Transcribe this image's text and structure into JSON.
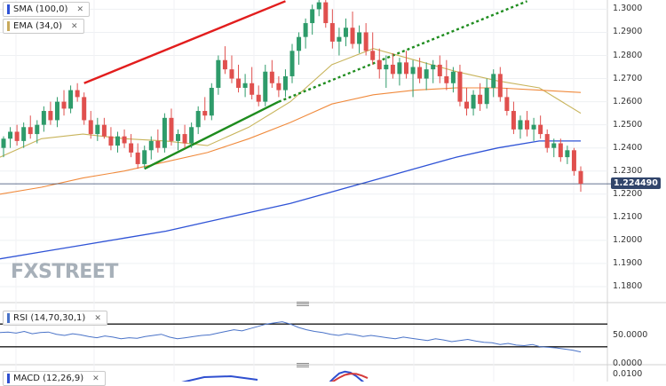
{
  "legends": {
    "sma": {
      "label": "SMA (100,0)",
      "color": "#2f53d6"
    },
    "ema": {
      "label": "EMA (34,0)",
      "color": "#c8a95b"
    },
    "rsi": {
      "label": "RSI (14,70,30,1)",
      "color": "#4a73c8"
    },
    "macd": {
      "label": "MACD (12,26,9)",
      "color": "#2f4fd0"
    }
  },
  "watermark": {
    "left": "FX",
    "x": "",
    "right": "STREET",
    "full": "FXSTREET"
  },
  "current_price": "1.224490",
  "colors": {
    "up": "#2e9b6a",
    "down": "#e0504e",
    "sma": "#2f53d6",
    "ema34": "#c8b45b",
    "ema_long": "#f08a3c",
    "trend_red": "#e21d1d",
    "trend_green": "#1e8c1e",
    "rsi_line": "#4a73c8",
    "macd_line": "#2f4fd0",
    "signal_line": "#d63a3a"
  },
  "chart_data": [
    {
      "type": "candlestick",
      "title": "",
      "y_axis": {
        "ticks": [
          "1.3000",
          "1.2900",
          "1.2800",
          "1.2700",
          "1.2600",
          "1.2500",
          "1.2400",
          "1.2300",
          "1.2200",
          "1.2100",
          "1.2000",
          "1.1900",
          "1.1800"
        ],
        "ylim": [
          1.175,
          1.304
        ]
      },
      "current_price_line": 1.22449,
      "candles": [
        [
          1.24,
          1.245,
          1.236,
          1.244
        ],
        [
          1.244,
          1.249,
          1.24,
          1.247
        ],
        [
          1.247,
          1.25,
          1.241,
          1.243
        ],
        [
          1.243,
          1.251,
          1.24,
          1.249
        ],
        [
          1.249,
          1.254,
          1.244,
          1.246
        ],
        [
          1.246,
          1.252,
          1.242,
          1.25
        ],
        [
          1.25,
          1.258,
          1.247,
          1.256
        ],
        [
          1.256,
          1.26,
          1.25,
          1.252
        ],
        [
          1.252,
          1.262,
          1.249,
          1.26
        ],
        [
          1.26,
          1.265,
          1.254,
          1.257
        ],
        [
          1.257,
          1.267,
          1.255,
          1.265
        ],
        [
          1.265,
          1.268,
          1.26,
          1.262
        ],
        [
          1.262,
          1.264,
          1.25,
          1.252
        ],
        [
          1.252,
          1.256,
          1.244,
          1.246
        ],
        [
          1.246,
          1.253,
          1.243,
          1.25
        ],
        [
          1.25,
          1.253,
          1.244,
          1.245
        ],
        [
          1.245,
          1.249,
          1.239,
          1.241
        ],
        [
          1.241,
          1.247,
          1.238,
          1.245
        ],
        [
          1.245,
          1.248,
          1.24,
          1.242
        ],
        [
          1.242,
          1.246,
          1.236,
          1.238
        ],
        [
          1.238,
          1.242,
          1.231,
          1.233
        ],
        [
          1.233,
          1.241,
          1.231,
          1.239
        ],
        [
          1.239,
          1.245,
          1.235,
          1.243
        ],
        [
          1.243,
          1.248,
          1.238,
          1.24
        ],
        [
          1.24,
          1.255,
          1.238,
          1.253
        ],
        [
          1.253,
          1.257,
          1.241,
          1.243
        ],
        [
          1.243,
          1.248,
          1.239,
          1.246
        ],
        [
          1.246,
          1.25,
          1.24,
          1.242
        ],
        [
          1.242,
          1.251,
          1.24,
          1.249
        ],
        [
          1.249,
          1.258,
          1.246,
          1.256
        ],
        [
          1.256,
          1.262,
          1.252,
          1.254
        ],
        [
          1.254,
          1.268,
          1.252,
          1.266
        ],
        [
          1.266,
          1.28,
          1.263,
          1.278
        ],
        [
          1.278,
          1.284,
          1.272,
          1.274
        ],
        [
          1.274,
          1.28,
          1.268,
          1.27
        ],
        [
          1.27,
          1.276,
          1.264,
          1.266
        ],
        [
          1.266,
          1.272,
          1.262,
          1.268
        ],
        [
          1.268,
          1.275,
          1.261,
          1.263
        ],
        [
          1.263,
          1.267,
          1.258,
          1.26
        ],
        [
          1.26,
          1.276,
          1.258,
          1.273
        ],
        [
          1.273,
          1.278,
          1.266,
          1.268
        ],
        [
          1.268,
          1.271,
          1.262,
          1.265
        ],
        [
          1.265,
          1.274,
          1.262,
          1.271
        ],
        [
          1.271,
          1.285,
          1.268,
          1.282
        ],
        [
          1.282,
          1.29,
          1.276,
          1.288
        ],
        [
          1.288,
          1.296,
          1.283,
          1.294
        ],
        [
          1.294,
          1.302,
          1.289,
          1.3
        ],
        [
          1.3,
          1.304,
          1.297,
          1.303
        ],
        [
          1.303,
          1.304,
          1.292,
          1.294
        ],
        [
          1.294,
          1.3,
          1.283,
          1.286
        ],
        [
          1.286,
          1.292,
          1.28,
          1.288
        ],
        [
          1.288,
          1.296,
          1.284,
          1.292
        ],
        [
          1.292,
          1.299,
          1.283,
          1.285
        ],
        [
          1.285,
          1.293,
          1.281,
          1.29
        ],
        [
          1.29,
          1.294,
          1.28,
          1.282
        ],
        [
          1.282,
          1.29,
          1.276,
          1.278
        ],
        [
          1.278,
          1.283,
          1.27,
          1.274
        ],
        [
          1.274,
          1.28,
          1.266,
          1.276
        ],
        [
          1.276,
          1.281,
          1.27,
          1.272
        ],
        [
          1.272,
          1.279,
          1.267,
          1.277
        ],
        [
          1.277,
          1.282,
          1.27,
          1.272
        ],
        [
          1.272,
          1.278,
          1.262,
          1.275
        ],
        [
          1.275,
          1.279,
          1.268,
          1.27
        ],
        [
          1.27,
          1.277,
          1.265,
          1.274
        ],
        [
          1.274,
          1.278,
          1.268,
          1.276
        ],
        [
          1.276,
          1.28,
          1.268,
          1.271
        ],
        [
          1.271,
          1.278,
          1.265,
          1.268
        ],
        [
          1.268,
          1.275,
          1.264,
          1.273
        ],
        [
          1.273,
          1.276,
          1.258,
          1.26
        ],
        [
          1.26,
          1.266,
          1.254,
          1.257
        ],
        [
          1.257,
          1.265,
          1.254,
          1.263
        ],
        [
          1.263,
          1.268,
          1.256,
          1.259
        ],
        [
          1.259,
          1.27,
          1.257,
          1.266
        ],
        [
          1.266,
          1.274,
          1.262,
          1.272
        ],
        [
          1.272,
          1.275,
          1.26,
          1.262
        ],
        [
          1.262,
          1.266,
          1.254,
          1.256
        ],
        [
          1.256,
          1.26,
          1.246,
          1.248
        ],
        [
          1.248,
          1.254,
          1.244,
          1.252
        ],
        [
          1.252,
          1.256,
          1.245,
          1.248
        ],
        [
          1.248,
          1.253,
          1.243,
          1.25
        ],
        [
          1.25,
          1.254,
          1.244,
          1.246
        ],
        [
          1.246,
          1.248,
          1.238,
          1.24
        ],
        [
          1.24,
          1.244,
          1.236,
          1.242
        ],
        [
          1.242,
          1.244,
          1.234,
          1.236
        ],
        [
          1.236,
          1.241,
          1.233,
          1.239
        ],
        [
          1.239,
          1.24,
          1.228,
          1.23
        ],
        [
          1.23,
          1.232,
          1.221,
          1.2245
        ]
      ],
      "series": [
        {
          "name": "SMA (100,0)",
          "role": "sma",
          "values": [
            1.192,
            1.195,
            1.198,
            1.201,
            1.204,
            1.208,
            1.212,
            1.216,
            1.221,
            1.226,
            1.231,
            1.236,
            1.24,
            1.243,
            1.243
          ]
        },
        {
          "name": "EMA (34,0)",
          "role": "ema34",
          "values": [
            1.236,
            1.244,
            1.246,
            1.244,
            1.243,
            1.241,
            1.249,
            1.26,
            1.276,
            1.283,
            1.278,
            1.273,
            1.269,
            1.266,
            1.255
          ]
        },
        {
          "role": "ema_long",
          "values": [
            1.22,
            1.223,
            1.227,
            1.23,
            1.234,
            1.238,
            1.244,
            1.251,
            1.259,
            1.263,
            1.265,
            1.266,
            1.266,
            1.265,
            1.264
          ]
        }
      ],
      "trendlines": [
        {
          "role": "trend_red",
          "from": [
            12,
            1.268
          ],
          "to": [
            42,
            1.3035
          ],
          "style": "solid"
        },
        {
          "role": "trend_green",
          "from": [
            21,
            1.231
          ],
          "to": [
            41,
            1.26
          ],
          "style": "solid"
        },
        {
          "role": "trend_green",
          "from": [
            41,
            1.26
          ],
          "to": [
            78,
            1.3035
          ],
          "style": "dotted"
        }
      ]
    },
    {
      "type": "line",
      "title": "RSI (14,70,30,1)",
      "y_axis": {
        "ticks": [
          "50.0000",
          "0.0000"
        ],
        "ylim": [
          0,
          100
        ]
      },
      "levels": [
        70,
        30
      ],
      "series": [
        {
          "values": [
            55,
            56,
            54,
            57,
            53,
            55,
            56,
            52,
            50,
            53,
            51,
            48,
            46,
            49,
            47,
            44,
            46,
            45,
            48,
            50,
            52,
            47,
            44,
            46,
            48,
            50,
            51,
            54,
            57,
            60,
            58,
            62,
            66,
            70,
            72,
            74,
            70,
            64,
            60,
            57,
            55,
            52,
            50,
            53,
            51,
            48,
            50,
            48,
            46,
            44,
            47,
            45,
            43,
            41,
            44,
            42,
            39,
            41,
            43,
            40,
            38,
            37,
            34,
            36,
            33,
            32,
            34,
            30,
            29,
            28,
            26,
            24,
            21
          ]
        }
      ]
    },
    {
      "type": "line",
      "title": "MACD (12,26,9)",
      "y_axis": {
        "ticks": [
          "0.0100"
        ]
      },
      "series": [
        {
          "role": "macd_line",
          "values": [
            0.006,
            0.007,
            0.0078,
            0.0076,
            0.0065,
            0.0052,
            0.0048,
            0.0055,
            0.0072,
            0.0095,
            0.0115,
            0.0122,
            0.0118,
            0.0104,
            0.0085,
            0.0066
          ]
        },
        {
          "role": "signal_line",
          "values": [
            0.0045,
            0.005,
            0.0056,
            0.006,
            0.0062,
            0.0063,
            0.0064,
            0.0066,
            0.0072,
            0.0084,
            0.0098,
            0.0109,
            0.0114,
            0.0113,
            0.0106,
            0.0096
          ]
        }
      ]
    }
  ]
}
